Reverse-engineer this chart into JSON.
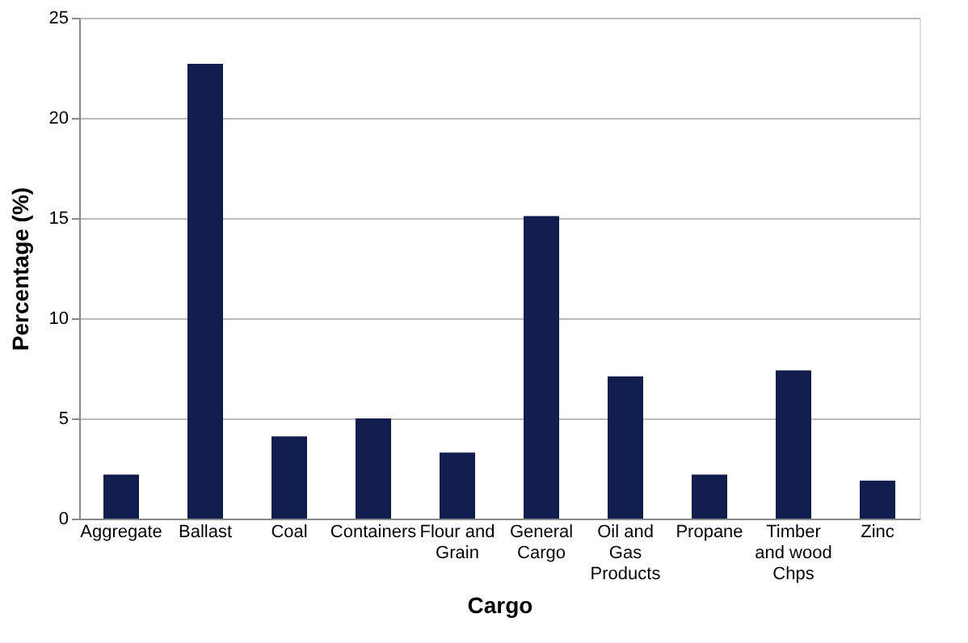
{
  "chart_data": {
    "type": "bar",
    "xlabel": "Cargo",
    "ylabel": "Percentage (%)",
    "categories": [
      "Aggregate",
      "Ballast",
      "Coal",
      "Containers",
      "Flour and Grain",
      "General Cargo",
      "Oil and Gas Products",
      "Propane",
      "Timber and wood Chps",
      "Zinc"
    ],
    "values": [
      2.2,
      22.7,
      4.1,
      5.0,
      3.3,
      15.1,
      7.1,
      2.2,
      7.4,
      1.9
    ],
    "color": "#111d4e",
    "ylim": [
      0,
      25
    ],
    "yticks": [
      0,
      5,
      10,
      15,
      20,
      25
    ],
    "grid": "y"
  }
}
